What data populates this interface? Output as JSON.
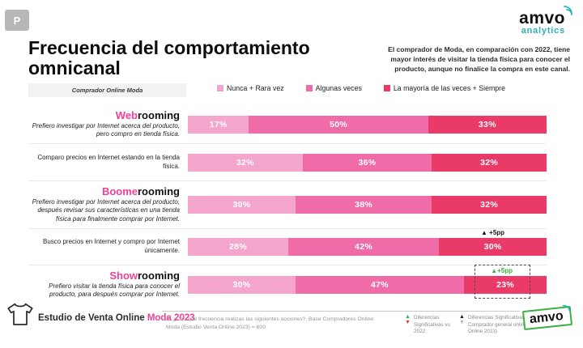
{
  "badge": "P",
  "logo": {
    "brand": "amvo",
    "analytics": "analytics"
  },
  "title": "Frecuencia del comportamiento omnicanal",
  "tag": "Comprador Online Moda",
  "insight": "El comprador de Moda, en comparación con 2022, tiene mayor interés de visitar la tienda física para conocer el producto, aunque no finalice la compra en este canal.",
  "colors": {
    "never_rare": "#F4A6CC",
    "sometimes": "#EF6CA9",
    "most_always": "#EA3A68",
    "accent_pink": "#F23F97",
    "teal": "#27B4B8",
    "green": "#3CB043",
    "red": "#E03A3A"
  },
  "icons": {
    "up_triangle": "▲",
    "down_triangle": "▼"
  },
  "legend": [
    {
      "label": "Nunca + Rara vez",
      "color": "#F4A6CC"
    },
    {
      "label": "Algunas veces",
      "color": "#EF6CA9"
    },
    {
      "label": "La mayoría de las veces + Siempre",
      "color": "#EA3A68"
    }
  ],
  "chart_data": {
    "type": "bar",
    "orientation": "horizontal",
    "stacked": true,
    "unit": "%",
    "xlim": [
      0,
      100
    ],
    "categories": [
      "Webrooming",
      "Comparo precios en Internet estando en la tienda física",
      "Boomerooming",
      "Busco precios en Internet y compro por Internet únicamente",
      "Showrooming"
    ],
    "series": [
      {
        "name": "Nunca + Rara vez",
        "values": [
          17,
          32,
          30,
          28,
          30
        ]
      },
      {
        "name": "Algunas veces",
        "values": [
          50,
          36,
          38,
          42,
          47
        ]
      },
      {
        "name": "La mayoría de las veces + Siempre",
        "values": [
          33,
          32,
          32,
          30,
          23
        ]
      }
    ],
    "rows": [
      {
        "title_highlight": "Web",
        "title_rest": "rooming",
        "desc": "Prefiero investigar por Internet acerca del producto, pero compro en tienda física.",
        "values": [
          17,
          50,
          33
        ]
      },
      {
        "title_highlight": "",
        "title_rest": "",
        "desc": "Comparo precios en Internet estando en la tienda física.",
        "values": [
          32,
          36,
          32
        ]
      },
      {
        "title_highlight": "Boome",
        "title_rest": "rooming",
        "desc": "Prefiero investigar por Internet acerca del producto, después revisar sus características en una tienda física para finalmente comprar por Internet.",
        "values": [
          30,
          38,
          32
        ]
      },
      {
        "title_highlight": "",
        "title_rest": "",
        "desc": "Busco precios en Internet y compro por Internet únicamente.",
        "values": [
          28,
          42,
          30
        ],
        "annotation": "▲ +5pp"
      },
      {
        "title_highlight": "Show",
        "title_rest": "rooming",
        "desc": "Prefiero visitar la tienda física para conocer el producto, para después comprar por Internet.",
        "values": [
          30,
          47,
          23
        ],
        "annotation": "▲+5pp",
        "highlight_box": true
      }
    ]
  },
  "footer": {
    "study_prefix": "Estudio de Venta Online ",
    "study_highlight": "Moda 2023",
    "footnote": "P: ¿Con qué frecuencia realizas las siguientes acciones?. Base Compradores Online Moda (Estudio Venta Online 2023) = 600.",
    "sig_legend_2022": "Diferencias Significativas vs 2022",
    "sig_legend_general": "Diferencias Significativas vs Comprador general online (Venta Online 2023)"
  }
}
